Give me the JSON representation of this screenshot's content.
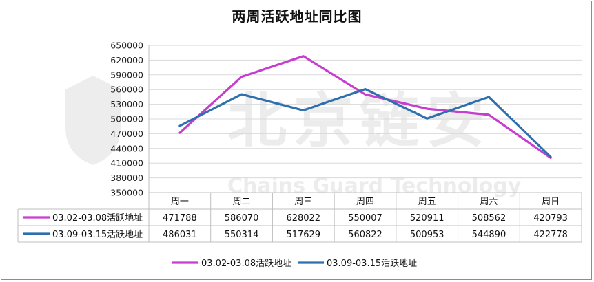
{
  "chart_data": {
    "type": "line",
    "title": "两周活跃地址同比图",
    "categories": [
      "周一",
      "周二",
      "周三",
      "周四",
      "周五",
      "周六",
      "周日"
    ],
    "series": [
      {
        "name": "03.02-03.08活跃地址",
        "color": "#c63dcf",
        "values": [
          471788,
          586070,
          628022,
          550007,
          520911,
          508562,
          420793
        ]
      },
      {
        "name": "03.09-03.15活跃地址",
        "color": "#2e6fad",
        "values": [
          486031,
          550314,
          517629,
          560822,
          500953,
          544890,
          422778
        ]
      }
    ],
    "ylim": [
      350000,
      650000
    ],
    "yticks": [
      650000,
      620000,
      590000,
      560000,
      530000,
      500000,
      470000,
      440000,
      410000,
      380000,
      350000
    ],
    "grid": true,
    "legend": "bottom",
    "data_table": true
  },
  "watermark": {
    "text": "北京链安",
    "subtext": "Chains Guard Technology"
  }
}
